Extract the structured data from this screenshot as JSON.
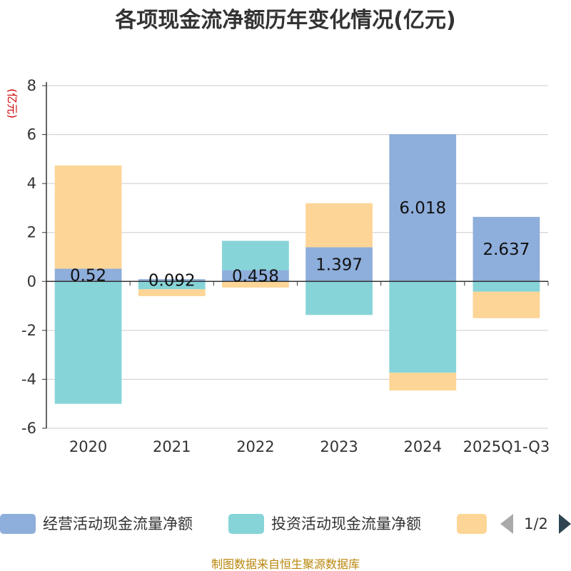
{
  "chart_data": {
    "type": "bar",
    "stacked": true,
    "title": "各项现金流净额历年变化情况(亿元)",
    "ylabel": "(亿元)",
    "ylim": [
      -6,
      8
    ],
    "yticks": [
      8,
      6,
      4,
      2,
      0,
      -2,
      -4,
      -6
    ],
    "categories": [
      "2020",
      "2021",
      "2022",
      "2023",
      "2024",
      "2025Q1-Q3"
    ],
    "series": [
      {
        "name": "经营活动现金流量净额",
        "color": "#8eaedb",
        "values": [
          0.52,
          0.092,
          0.458,
          1.397,
          6.018,
          2.637
        ],
        "labels": [
          "0.52",
          "0.092",
          "0.458",
          "1.397",
          "6.018",
          "2.637"
        ]
      },
      {
        "name": "投资活动现金流量净额",
        "color": "#86d4d8",
        "values": [
          -5.0,
          -0.32,
          1.2,
          -1.37,
          -3.73,
          -0.42
        ]
      },
      {
        "name": "",
        "color": "#fdd596",
        "values": [
          4.22,
          -0.28,
          -0.25,
          1.8,
          -0.73,
          -1.08
        ]
      }
    ],
    "grid": true,
    "legend": "bottom"
  },
  "legend": {
    "items": [
      "经营活动现金流量净额",
      "投资活动现金流量净额",
      ""
    ],
    "page": "1/2"
  },
  "source": "制图数据来自恒生聚源数据库"
}
